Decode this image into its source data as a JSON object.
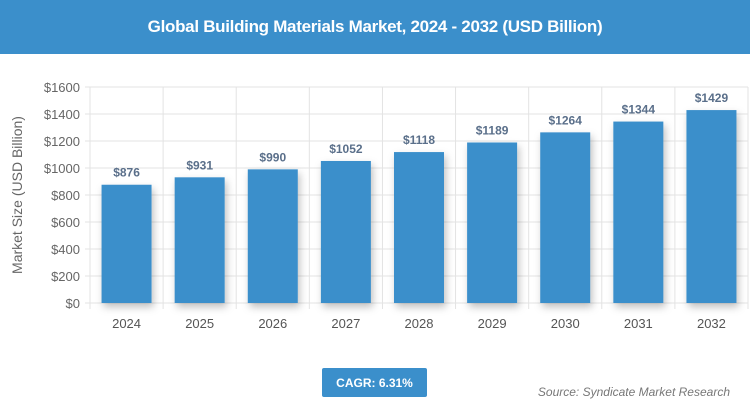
{
  "header": {
    "title": "Global Building Materials Market, 2024 - 2032 (USD Billion)"
  },
  "chart_data": {
    "type": "bar",
    "title": "Global Building Materials Market, 2024 - 2032 (USD Billion)",
    "categories": [
      "2024",
      "2025",
      "2026",
      "2027",
      "2028",
      "2029",
      "2030",
      "2031",
      "2032"
    ],
    "values": [
      876,
      931,
      990,
      1052,
      1118,
      1189,
      1264,
      1344,
      1429
    ],
    "data_labels": [
      "$876",
      "$931",
      "$990",
      "$1052",
      "$1118",
      "$1189",
      "$1264",
      "$1344",
      "$1429"
    ],
    "ylabel": "Market Size (USD Billion)",
    "xlabel": "",
    "ylim": [
      0,
      1600
    ],
    "yticks": [
      0,
      200,
      400,
      600,
      800,
      1000,
      1200,
      1400,
      1600
    ],
    "ytick_labels": [
      "$0",
      "$200",
      "$400",
      "$600",
      "$800",
      "$1000",
      "$1200",
      "$1400",
      "$1600"
    ],
    "grid": true,
    "bar_color": "#3b8fcb"
  },
  "footer": {
    "cagr": "CAGR: 6.31%",
    "source": "Source: Syndicate Market Research"
  }
}
